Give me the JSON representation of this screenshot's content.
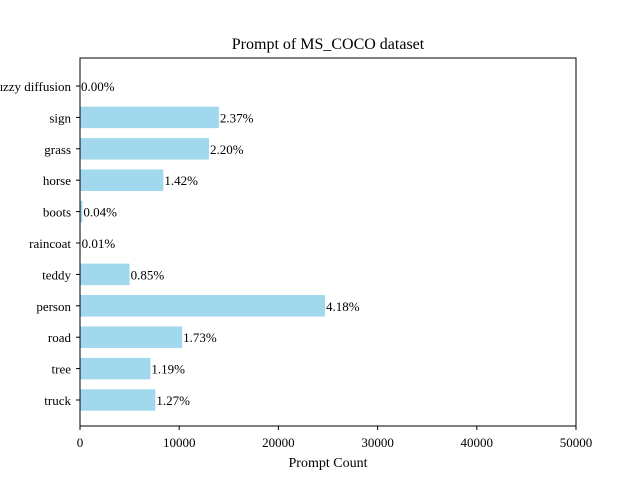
{
  "chart_data": {
    "type": "bar",
    "orientation": "horizontal",
    "title": "Prompt of MS_COCO dataset",
    "xlabel": "Prompt Count",
    "ylabel": "",
    "xlim": [
      0,
      50000
    ],
    "xticks": [
      0,
      10000,
      20000,
      30000,
      40000,
      50000
    ],
    "xtick_labels": [
      "0",
      "10000",
      "20000",
      "30000",
      "40000",
      "50000"
    ],
    "grid": false,
    "bar_color": "#a2d8ee",
    "categories": [
      "truck",
      "tree",
      "road",
      "person",
      "teddy",
      "raincoat",
      "boots",
      "horse",
      "grass",
      "sign",
      "fuzzy diffusion"
    ],
    "values": [
      7600,
      7100,
      10300,
      24700,
      5000,
      60,
      240,
      8400,
      13000,
      14000,
      0
    ],
    "percent_labels": [
      "1.27%",
      "1.19%",
      "1.73%",
      "4.18%",
      "0.85%",
      "0.01%",
      "0.04%",
      "1.42%",
      "2.20%",
      "2.37%",
      "0.00%"
    ]
  }
}
